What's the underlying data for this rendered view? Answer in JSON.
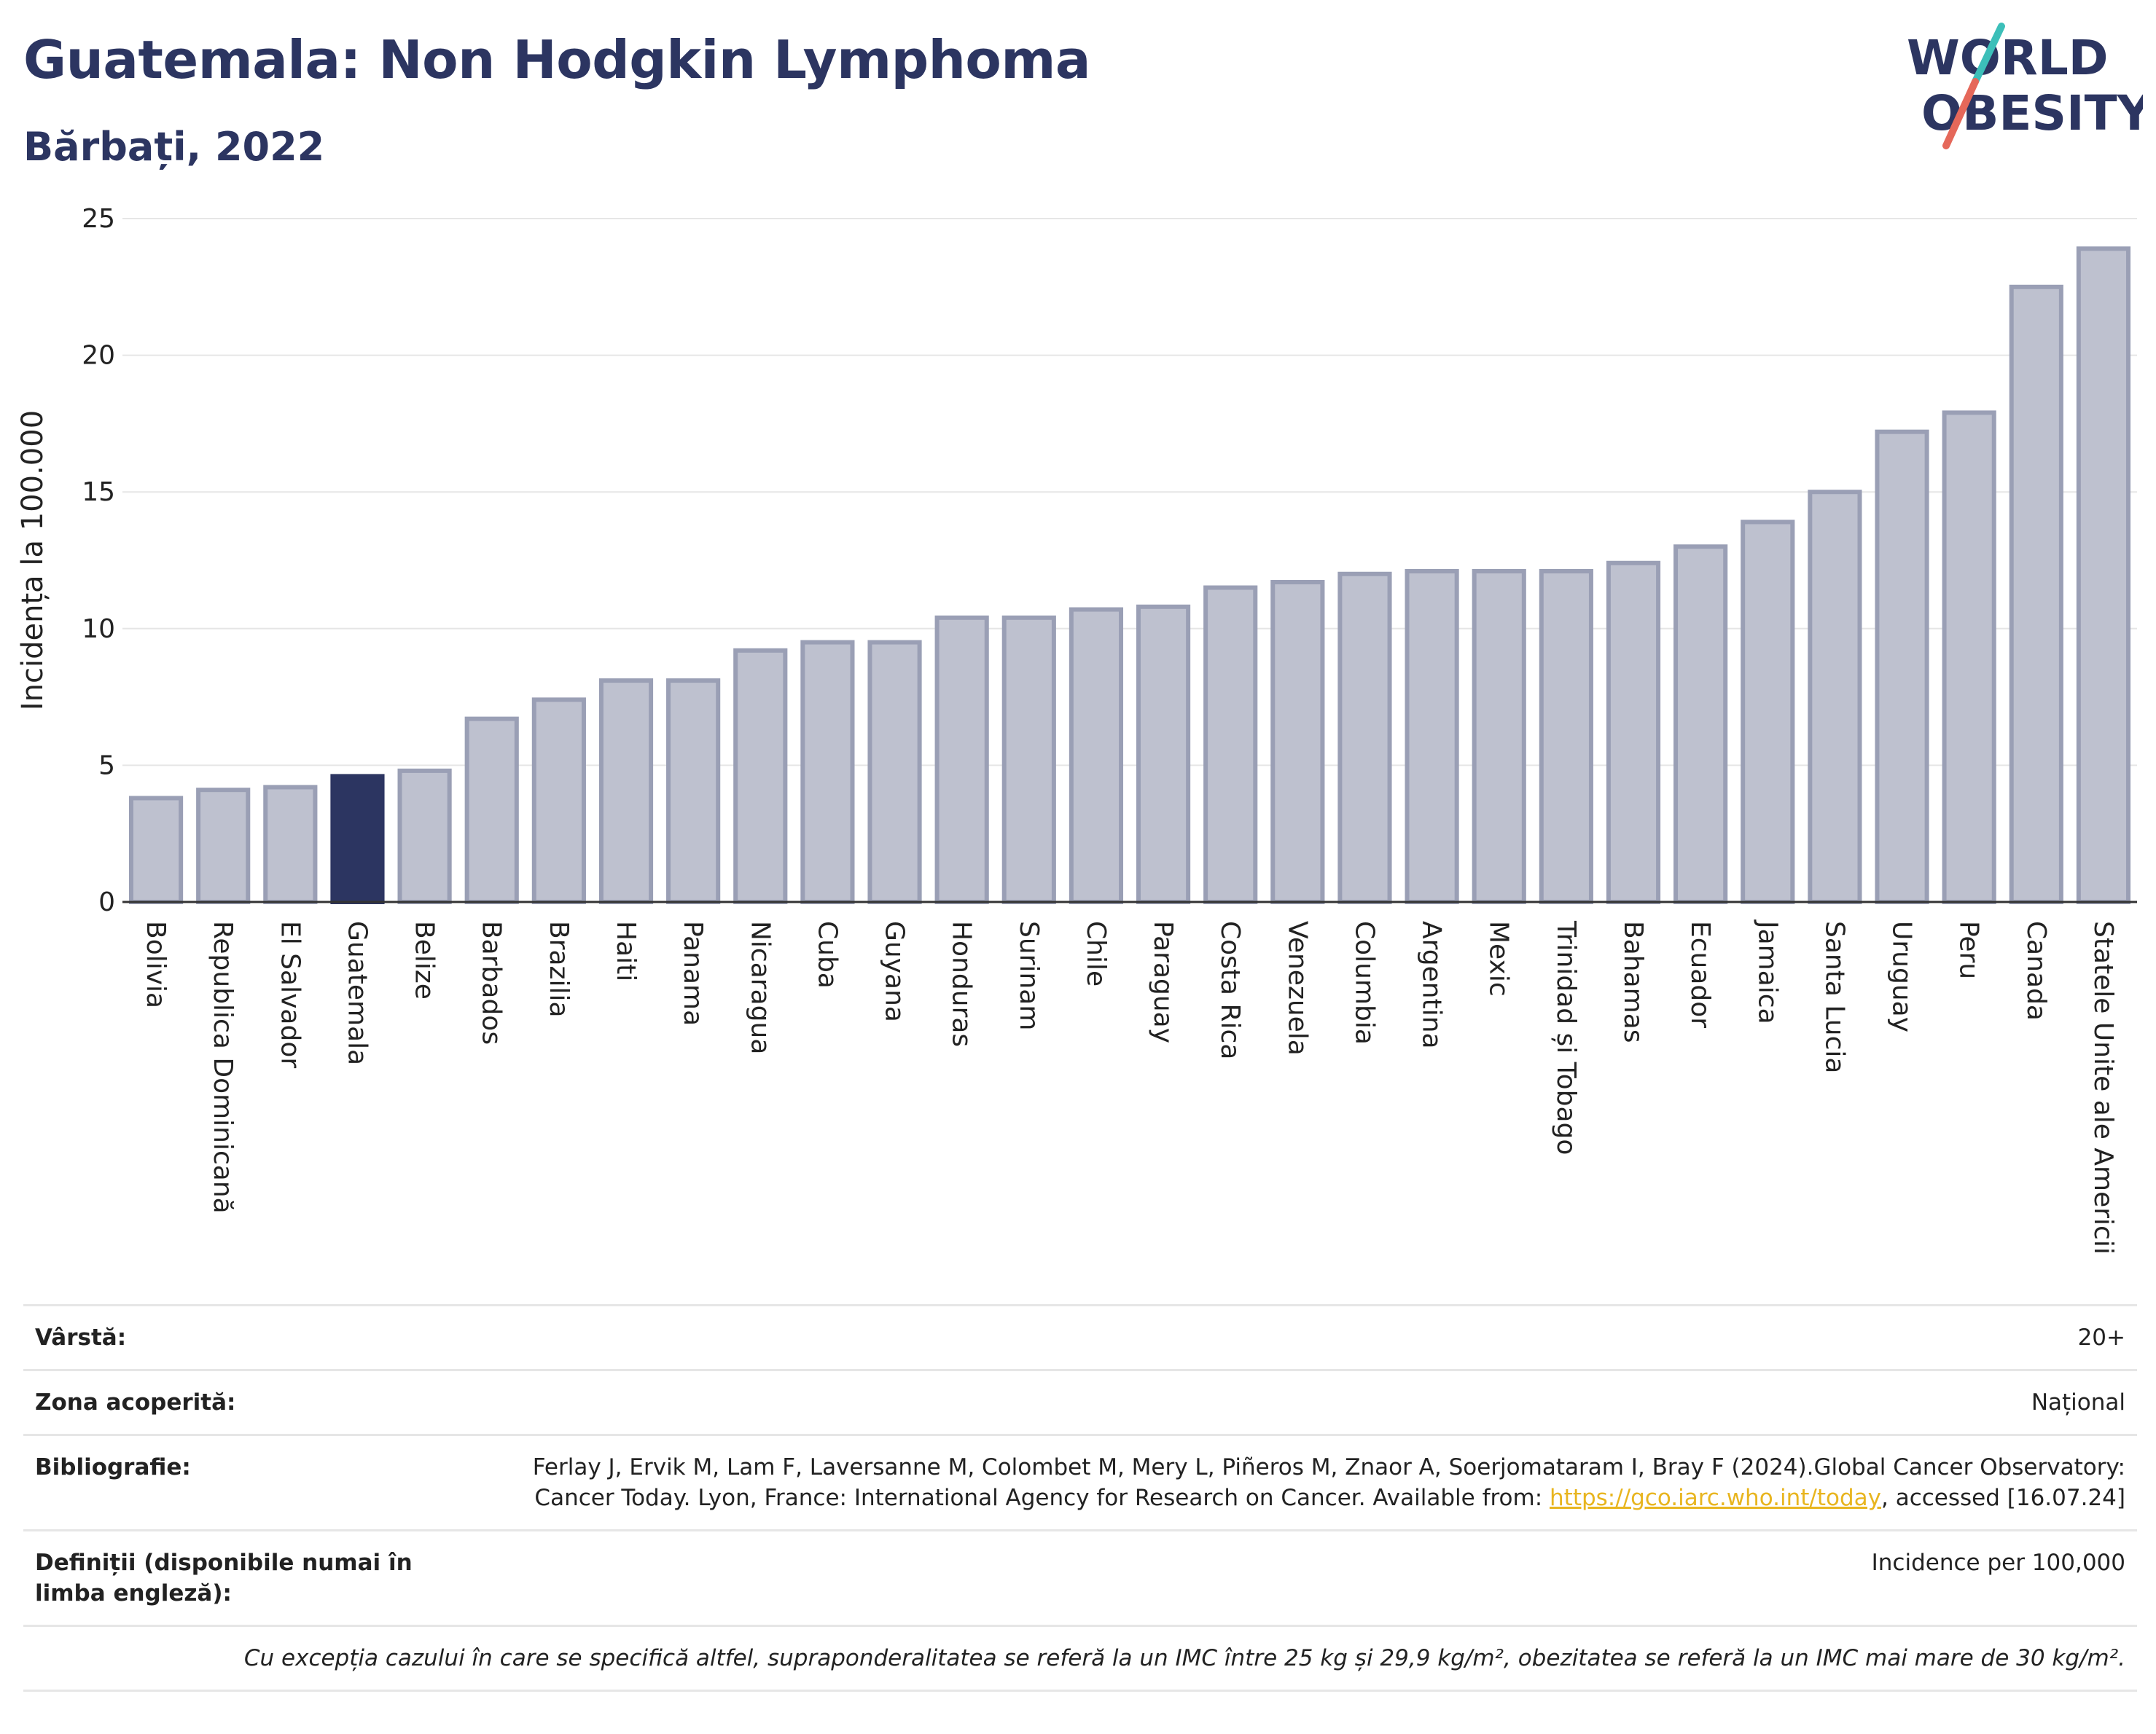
{
  "header": {
    "title": "Guatemala: Non Hodgkin Lymphoma",
    "subtitle": "Bărbați, 2022"
  },
  "logo": {
    "line1": "WORLD",
    "line2": "OBESITY",
    "accent_teal": "#3cbfb9",
    "accent_red": "#e5685a"
  },
  "colors": {
    "highlight": "#2c3561",
    "bar_fill": "#bec1cf",
    "bar_stroke": "#9a9fb5"
  },
  "chart_data": {
    "type": "bar",
    "title": "Guatemala: Non Hodgkin Lymphoma",
    "subtitle": "Bărbați, 2022",
    "ylabel": "Incidența la 100.000",
    "xlabel": "",
    "ylim": [
      0,
      25
    ],
    "yticks": [
      0,
      5,
      10,
      15,
      20,
      25
    ],
    "grid": true,
    "highlight": "Guatemala",
    "categories": [
      "Bolivia",
      "Republica Dominicană",
      "El Salvador",
      "Guatemala",
      "Belize",
      "Barbados",
      "Brazilia",
      "Haiti",
      "Panama",
      "Nicaragua",
      "Cuba",
      "Guyana",
      "Honduras",
      "Surinam",
      "Chile",
      "Paraguay",
      "Costa Rica",
      "Venezuela",
      "Columbia",
      "Argentina",
      "Mexic",
      "Trinidad și Tobago",
      "Bahamas",
      "Ecuador",
      "Jamaica",
      "Santa Lucia",
      "Uruguay",
      "Peru",
      "Canada",
      "Statele Unite ale Americii"
    ],
    "values": [
      3.8,
      4.1,
      4.2,
      4.6,
      4.8,
      6.7,
      7.4,
      8.1,
      8.1,
      9.2,
      9.5,
      9.5,
      10.4,
      10.4,
      10.7,
      10.8,
      11.5,
      11.7,
      12.0,
      12.1,
      12.1,
      12.1,
      12.4,
      13.0,
      13.9,
      15.0,
      17.2,
      17.9,
      22.5,
      23.9
    ]
  },
  "info": {
    "age_label": "Vârstă:",
    "age_value": "20+",
    "coverage_label": "Zona acoperită:",
    "coverage_value": "Național",
    "biblio_label": "Bibliografie:",
    "biblio_text": "Ferlay J, Ervik M, Lam F, Laversanne M, Colombet M, Mery L, Piñeros M, Znaor A, Soerjomataram I, Bray F (2024).Global Cancer Observatory: Cancer Today. Lyon, France: International Agency for Research on Cancer. Available from: ",
    "biblio_link": "https://gco.iarc.who.int/today",
    "biblio_after": ", accessed [16.07.24]",
    "definitions_label": "Definiții (disponibile numai în limba engleză):",
    "definitions_value": "Incidence per 100,000",
    "footnote": "Cu excepția cazului în care se specifică altfel, supraponderalitatea se referă la un IMC între 25 kg și 29,9 kg/m², obezitatea se referă la un IMC mai mare de 30 kg/m²."
  }
}
